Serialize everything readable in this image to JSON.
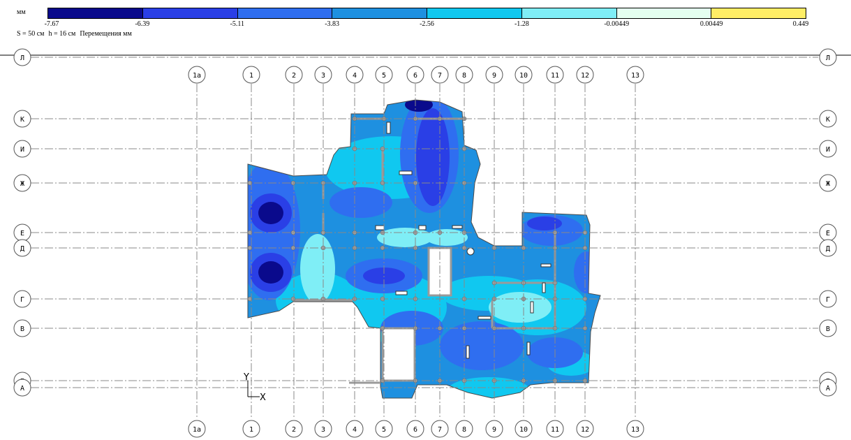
{
  "legend": {
    "unit": "мм",
    "caption_parts": [
      "S = 50 см",
      "h = 16 см",
      "Перемещения мм"
    ],
    "ticks": [
      "-7.67",
      "-6.39",
      "-5.11",
      "-3.83",
      "-2.56",
      "-1.28",
      "-0.00449",
      "0.00449",
      "0.449"
    ],
    "colors": [
      "#0a0a8c",
      "#2a3fe6",
      "#2f6ef0",
      "#1e90e0",
      "#10c8f0",
      "#7feef6",
      "#e4fff0",
      "#ffee66"
    ]
  },
  "grid": {
    "vertical_axes": [
      "1а",
      "1",
      "2",
      "3",
      "4",
      "5",
      "6",
      "7",
      "8",
      "9",
      "10",
      "11",
      "12",
      "13"
    ],
    "horizontal_axes": [
      "Л",
      "К",
      "И",
      "Ж",
      "Е",
      "Д",
      "Г",
      "В",
      "Б",
      "А"
    ]
  },
  "coordinate_axes": {
    "y_label": "Y",
    "x_label": "X"
  }
}
